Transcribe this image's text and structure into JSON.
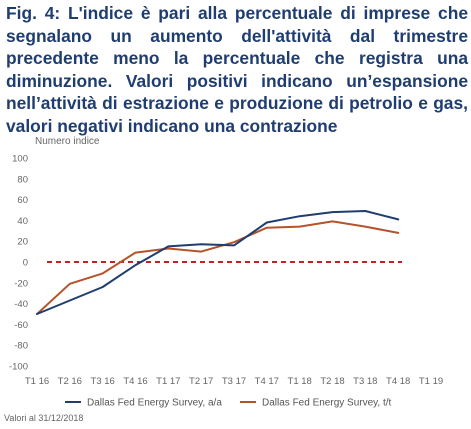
{
  "title": "Fig. 4: L'indice è pari alla percentuale di imprese che segnalano un aumento dell'attività dal trimestre precedente meno la percentuale che registra una diminuzione. Valori positivi indicano un’espansione nell’attività di estrazione e produzione di petrolio e gas, valori negativi indicano una contrazione",
  "source_note": "Valori al 31/12/2018",
  "chart_data": {
    "type": "line",
    "ylabel": "Numero indice",
    "xlabel": "",
    "ylim": [
      -100,
      100
    ],
    "yticks": [
      100,
      80,
      60,
      40,
      20,
      0,
      -20,
      -40,
      -60,
      -80,
      -100
    ],
    "categories": [
      "T1 16",
      "T2 16",
      "T3 16",
      "T4 16",
      "T1 17",
      "T2 17",
      "T3 17",
      "T4 17",
      "T1 18",
      "T2 18",
      "T3 18",
      "T4 18",
      "T1 19"
    ],
    "grid": false,
    "legend_position": "bottom",
    "reference_line": {
      "y": 0,
      "style": "dashed",
      "color": "#c00000"
    },
    "series": [
      {
        "name": "Dallas Fed Energy Survey, a/a",
        "color": "#1f3d70",
        "x": [
          "T1 16",
          "T2 16",
          "T3 16",
          "T4 16",
          "T1 17",
          "T2 17",
          "T3 17",
          "T4 17",
          "T1 18",
          "T2 18",
          "T3 18",
          "T4 18"
        ],
        "values": [
          -50,
          -37,
          -24,
          -3,
          15,
          17,
          16,
          38,
          44,
          48,
          49,
          41
        ]
      },
      {
        "name": "Dallas Fed Energy Survey, t/t",
        "color": "#b5532a",
        "x": [
          "T1 16",
          "T2 16",
          "T3 16",
          "T4 16",
          "T1 17",
          "T2 17",
          "T3 17",
          "T4 17",
          "T1 18",
          "T2 18",
          "T3 18",
          "T4 18"
        ],
        "values": [
          -50,
          -21,
          -11,
          9,
          13,
          10,
          19,
          33,
          34,
          39,
          34,
          28
        ]
      }
    ]
  }
}
